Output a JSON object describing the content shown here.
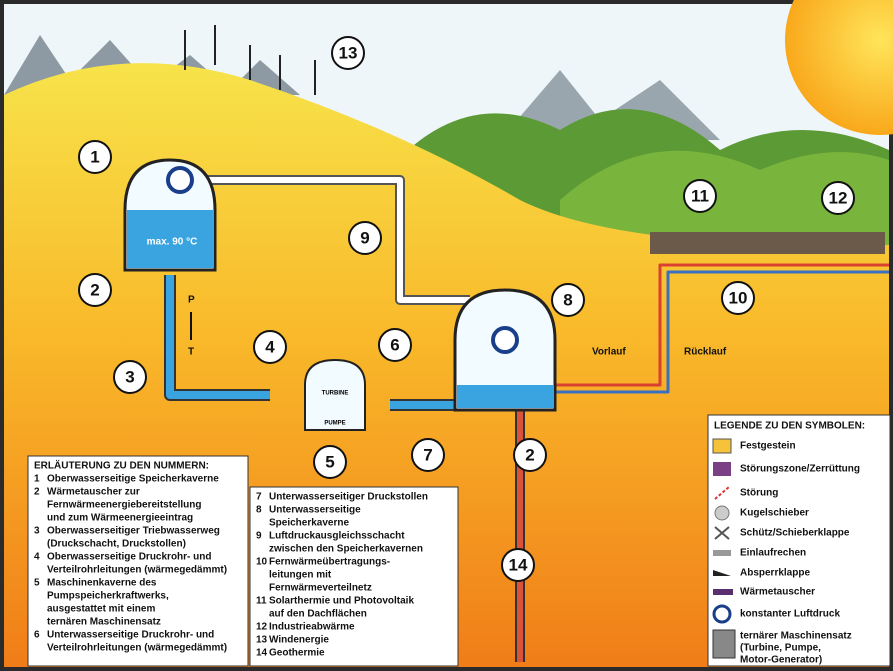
{
  "markers": [
    "1",
    "2",
    "2",
    "3",
    "4",
    "5",
    "6",
    "7",
    "8",
    "9",
    "10",
    "11",
    "12",
    "13",
    "14"
  ],
  "annotations": {
    "max_temp": "max. 90 °C",
    "p": "P",
    "t": "T",
    "vorlauf": "Vorlauf",
    "ruecklauf": "Rücklauf",
    "turbine": "TURBINE",
    "pumpe": "PUMPE"
  },
  "legend": {
    "title": "LEGENDE ZU DEN SYMBOLEN:",
    "items": [
      [
        "Festgestein"
      ],
      [
        "Störungszone/Zerrüttung"
      ],
      [
        "Störung"
      ],
      [
        "Kugelschieber"
      ],
      [
        "Schütz/Schieberklappe"
      ],
      [
        "Einlaufrechen"
      ],
      [
        "Absperrklappe"
      ],
      [
        "Wärmetauscher"
      ],
      [
        "konstanter Luftdruck"
      ],
      [
        "ternärer Maschinensatz",
        "(Turbine, Pumpe,",
        "Motor-Generator)"
      ]
    ]
  },
  "explanation": {
    "title": "ERLÄUTERUNG ZU DEN NUMMERN:",
    "entries": [
      {
        "number": "1",
        "lines": [
          "Oberwasserseitige Speicherkaverne"
        ]
      },
      {
        "number": "2",
        "lines": [
          "Wärmetauscher zur",
          "Fernwärmeenergiebereitstellung",
          "und zum Wärmeenergieeintrag"
        ]
      },
      {
        "number": "3",
        "lines": [
          "Oberwasserseitiger Triebwasserweg",
          "(Druckschacht, Druckstollen)"
        ]
      },
      {
        "number": "4",
        "lines": [
          "Oberwasserseitige Druckrohr- und",
          "Verteilrohrleitungen (wärmegedämmt)"
        ]
      },
      {
        "number": "5",
        "lines": [
          "Maschinenkaverne des",
          "Pumpspeicherkraftwerks,",
          "ausgestattet mit einem",
          "ternären Maschinensatz"
        ]
      },
      {
        "number": "6",
        "lines": [
          "Unterwasserseitige Druckrohr- und",
          "Verteilrohrleitungen (wärmegedämmt)"
        ]
      }
    ],
    "entries2": [
      {
        "number": "7",
        "lines": [
          "Unterwasserseitiger Druckstollen"
        ]
      },
      {
        "number": "8",
        "lines": [
          "Unterwasserseitige",
          "Speicherkaverne"
        ]
      },
      {
        "number": "9",
        "lines": [
          "Luftdruckausgleichsschacht",
          "zwischen den Speicherkavernen"
        ]
      },
      {
        "number": "10",
        "lines": [
          "Fernwärmeübertragungs-",
          "leitungen mit",
          "Fernwärmeverteilnetz"
        ]
      },
      {
        "number": "11",
        "lines": [
          "Solarthermie und Photovoltaik",
          "auf den Dachflächen"
        ]
      },
      {
        "number": "12",
        "lines": [
          "Industrieabwärme"
        ]
      },
      {
        "number": "13",
        "lines": [
          "Windenergie"
        ]
      },
      {
        "number": "14",
        "lines": [
          "Geothermie"
        ]
      }
    ]
  }
}
